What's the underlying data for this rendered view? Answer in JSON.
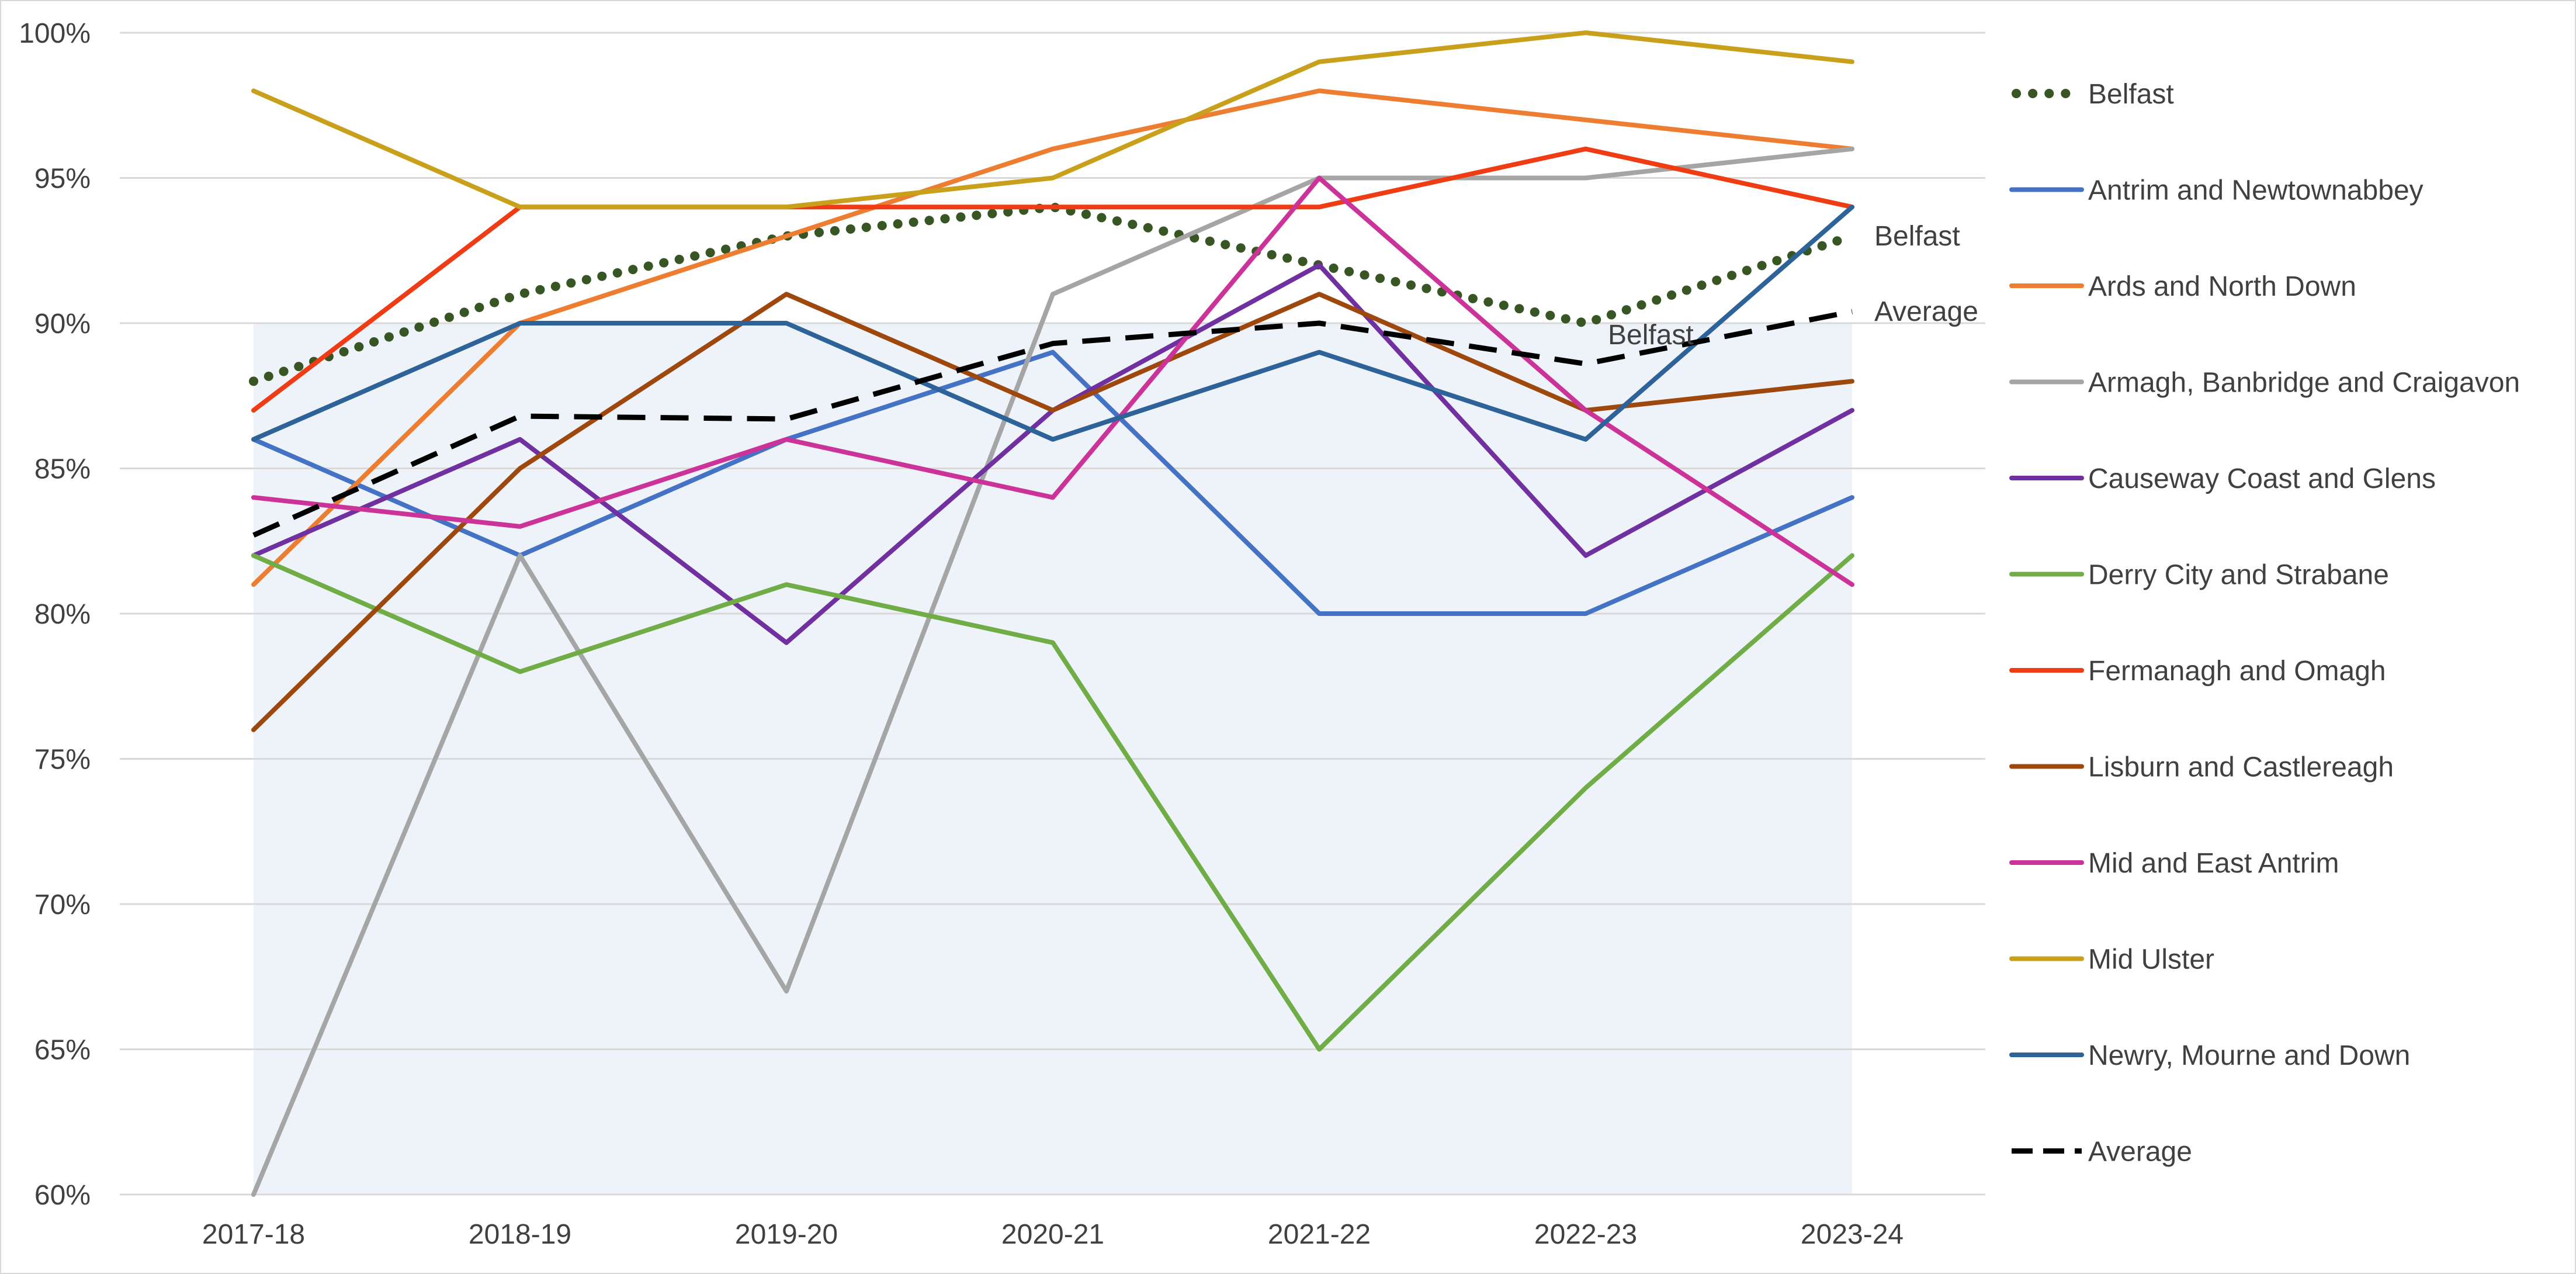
{
  "chart_data": {
    "type": "line",
    "categories": [
      "2017-18",
      "2018-19",
      "2019-20",
      "2020-21",
      "2021-22",
      "2022-23",
      "2023-24"
    ],
    "ylim": [
      0.6,
      1.0
    ],
    "y_ticks": [
      {
        "value": 0.6,
        "label": "60%"
      },
      {
        "value": 0.65,
        "label": "65%"
      },
      {
        "value": 0.7,
        "label": "70%"
      },
      {
        "value": 0.75,
        "label": "75%"
      },
      {
        "value": 0.8,
        "label": "80%"
      },
      {
        "value": 0.85,
        "label": "85%"
      },
      {
        "value": 0.9,
        "label": "90%"
      },
      {
        "value": 0.95,
        "label": "95%"
      },
      {
        "value": 1.0,
        "label": "100%"
      }
    ],
    "grid": "horizontal",
    "legend_position": "right",
    "background_area": {
      "values": [
        0.9,
        0.9,
        0.9,
        0.9,
        0.9,
        0.9,
        0.9
      ],
      "color": "#eef3fa"
    },
    "series": [
      {
        "name": "Belfast",
        "color": "#375623",
        "style": "dotted",
        "values": [
          0.88,
          0.91,
          0.93,
          0.94,
          0.92,
          0.9,
          0.93
        ]
      },
      {
        "name": "Antrim and Newtownabbey",
        "color": "#4472c4",
        "style": "solid",
        "values": [
          0.86,
          0.82,
          0.86,
          0.89,
          0.8,
          0.8,
          0.84
        ]
      },
      {
        "name": "Ards and North Down",
        "color": "#ed7d31",
        "style": "solid",
        "values": [
          0.81,
          0.9,
          0.93,
          0.96,
          0.98,
          0.97,
          0.96
        ]
      },
      {
        "name": "Armagh, Banbridge and Craigavon",
        "color": "#a5a5a5",
        "style": "solid",
        "values": [
          0.6,
          0.82,
          0.67,
          0.91,
          0.95,
          0.95,
          0.96
        ]
      },
      {
        "name": "Causeway Coast and Glens",
        "color": "#7030a0",
        "style": "solid",
        "values": [
          0.82,
          0.86,
          0.79,
          0.87,
          0.92,
          0.82,
          0.87
        ]
      },
      {
        "name": " Derry City and Strabane",
        "color": "#70ad47",
        "style": "solid",
        "values": [
          0.82,
          0.78,
          0.81,
          0.79,
          0.65,
          0.74,
          0.82
        ]
      },
      {
        "name": "Fermanagh and Omagh",
        "color": "#f03c14",
        "style": "solid",
        "values": [
          0.87,
          0.94,
          0.94,
          0.94,
          0.94,
          0.96,
          0.94
        ]
      },
      {
        "name": "Lisburn and Castlereagh",
        "color": "#9e480e",
        "style": "solid",
        "values": [
          0.76,
          0.85,
          0.91,
          0.87,
          0.91,
          0.87,
          0.88
        ]
      },
      {
        "name": "Mid and East Antrim",
        "color": "#cc3399",
        "style": "solid",
        "values": [
          0.84,
          0.83,
          0.86,
          0.84,
          0.95,
          0.87,
          0.81
        ]
      },
      {
        "name": "Mid Ulster",
        "color": "#c9a01c",
        "style": "solid",
        "values": [
          0.98,
          0.94,
          0.94,
          0.95,
          0.99,
          1.0,
          0.99
        ]
      },
      {
        "name": "Newry, Mourne and Down",
        "color": "#2e6399",
        "style": "solid",
        "values": [
          0.86,
          0.9,
          0.9,
          0.86,
          0.89,
          0.86,
          0.94
        ]
      },
      {
        "name": "Average",
        "color": "#000000",
        "style": "dashed",
        "values": [
          0.827,
          0.868,
          0.867,
          0.893,
          0.9,
          0.886,
          0.904
        ]
      }
    ],
    "annotations": [
      {
        "text": "Belfast",
        "series": "Belfast",
        "index": 6
      },
      {
        "text": "Belfast",
        "series": "Belfast",
        "index": 5
      },
      {
        "text": "Average",
        "series": "Average",
        "index": 6
      }
    ]
  }
}
